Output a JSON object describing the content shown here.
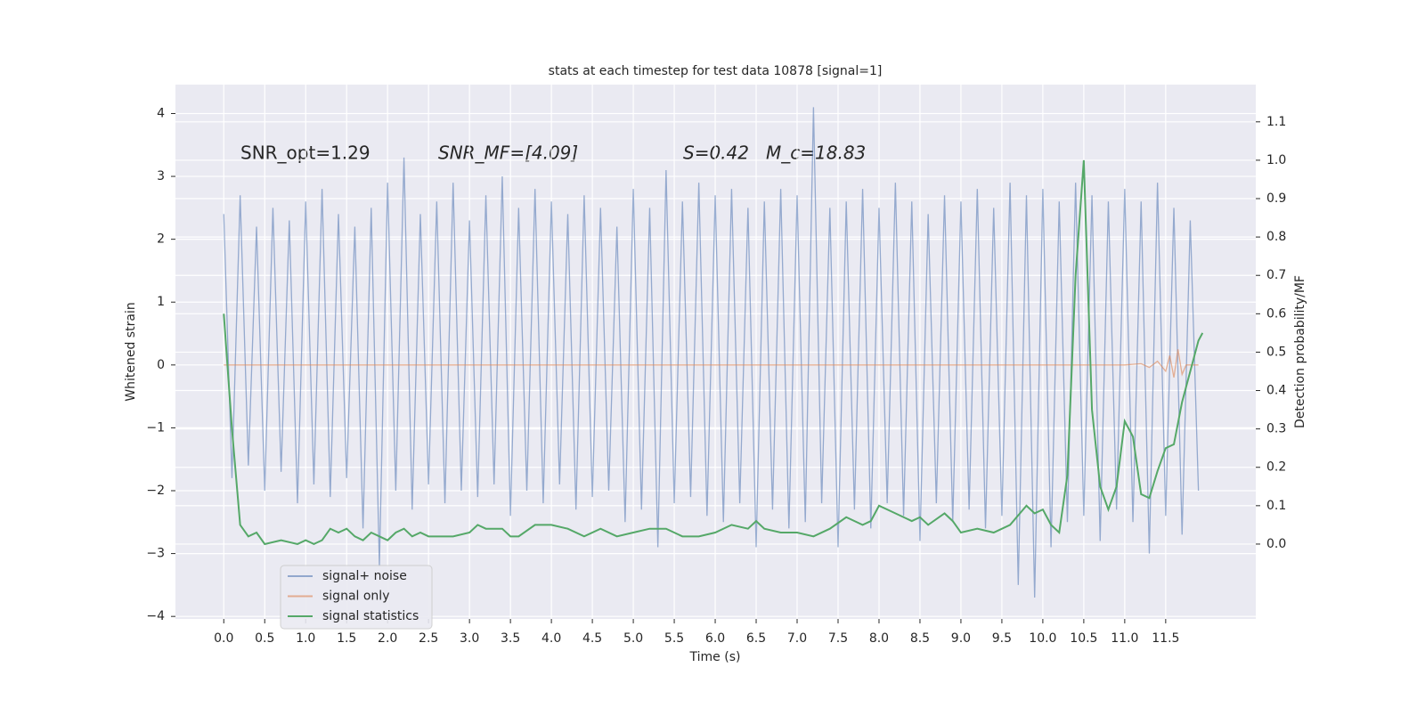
{
  "chart_data": {
    "type": "line",
    "title": "stats at each timestep for test data 10878 [signal=1]",
    "xlabel": "Time (s)",
    "ylabel": "Whitened strain",
    "y2label": "Detection probability/MF",
    "annotations": [
      "SNR_opt=1.29",
      "SNR_MF=[4.09]",
      "S=0.42",
      "M_c=18.83"
    ],
    "xlim": [
      -0.59,
      12.6
    ],
    "ylim": [
      -4.04,
      4.46
    ],
    "y2lim": [
      -0.195,
      1.197
    ],
    "xticks": [
      {
        "value": 0,
        "label": "0.0"
      },
      {
        "value": 0.5,
        "label": "0.5"
      },
      {
        "value": 1,
        "label": "1.0"
      },
      {
        "value": 1.5,
        "label": "1.5"
      },
      {
        "value": 2,
        "label": "2.0"
      },
      {
        "value": 2.5,
        "label": "2.5"
      },
      {
        "value": 3,
        "label": "3.0"
      },
      {
        "value": 3.5,
        "label": "3.5"
      },
      {
        "value": 4,
        "label": "4.0"
      },
      {
        "value": 4.5,
        "label": "4.5"
      },
      {
        "value": 5,
        "label": "5.0"
      },
      {
        "value": 5.5,
        "label": "5.5"
      },
      {
        "value": 6,
        "label": "6.0"
      },
      {
        "value": 6.5,
        "label": "6.5"
      },
      {
        "value": 7,
        "label": "7.0"
      },
      {
        "value": 7.5,
        "label": "7.5"
      },
      {
        "value": 8,
        "label": "8.0"
      },
      {
        "value": 8.5,
        "label": "8.5"
      },
      {
        "value": 9,
        "label": "9.0"
      },
      {
        "value": 9.5,
        "label": "9.5"
      },
      {
        "value": 10,
        "label": "10.0"
      },
      {
        "value": 10.5,
        "label": "10.5"
      },
      {
        "value": 11,
        "label": "11.0"
      },
      {
        "value": 11.5,
        "label": "11.5"
      }
    ],
    "yticks": [
      {
        "value": -4,
        "label": "−4"
      },
      {
        "value": -3,
        "label": "−3"
      },
      {
        "value": -2,
        "label": "−2"
      },
      {
        "value": -1,
        "label": "−1"
      },
      0,
      1,
      2,
      3,
      4
    ],
    "y2ticks": [
      {
        "value": 0,
        "label": "0.0"
      },
      {
        "value": 0.1,
        "label": "0.1"
      },
      {
        "value": 0.2,
        "label": "0.2"
      },
      {
        "value": 0.3,
        "label": "0.3"
      },
      {
        "value": 0.4,
        "label": "0.4"
      },
      {
        "value": 0.5,
        "label": "0.5"
      },
      {
        "value": 0.6,
        "label": "0.6"
      },
      {
        "value": 0.7,
        "label": "0.7"
      },
      {
        "value": 0.8,
        "label": "0.8"
      },
      {
        "value": 0.9,
        "label": "0.9"
      },
      {
        "value": 1.0,
        "label": "1.0"
      },
      {
        "value": 1.1,
        "label": "1.1"
      }
    ],
    "grid": true,
    "legend": "lower left",
    "series": [
      {
        "name": "signal+ noise",
        "color": "#4c72b0",
        "x": [
          0,
          0.1,
          0.2,
          0.3,
          0.4,
          0.5,
          0.6,
          0.7,
          0.8,
          0.9,
          1,
          1.1,
          1.2,
          1.3,
          1.4,
          1.5,
          1.6,
          1.7,
          1.8,
          1.9,
          2,
          2.1,
          2.2,
          2.3,
          2.4,
          2.5,
          2.6,
          2.7,
          2.8,
          2.9,
          3,
          3.1,
          3.2,
          3.3,
          3.4,
          3.5,
          3.6,
          3.7,
          3.8,
          3.9,
          4,
          4.1,
          4.2,
          4.3,
          4.4,
          4.5,
          4.6,
          4.7,
          4.8,
          4.9,
          5,
          5.1,
          5.2,
          5.3,
          5.4,
          5.5,
          5.6,
          5.7,
          5.8,
          5.9,
          6,
          6.1,
          6.2,
          6.3,
          6.4,
          6.5,
          6.6,
          6.7,
          6.8,
          6.9,
          7,
          7.1,
          7.2,
          7.3,
          7.4,
          7.5,
          7.6,
          7.7,
          7.8,
          7.9,
          8,
          8.1,
          8.2,
          8.3,
          8.4,
          8.5,
          8.6,
          8.7,
          8.8,
          8.9,
          9,
          9.1,
          9.2,
          9.3,
          9.4,
          9.5,
          9.6,
          9.7,
          9.8,
          9.9,
          10,
          10.1,
          10.2,
          10.3,
          10.4,
          10.5,
          10.6,
          10.7,
          10.8,
          10.9,
          11,
          11.1,
          11.2,
          11.3,
          11.4,
          11.5,
          11.6,
          11.7,
          11.8,
          11.9
        ],
        "values": [
          2.4,
          -1.8,
          2.7,
          -1.6,
          2.2,
          -2.0,
          2.5,
          -1.7,
          2.3,
          -2.2,
          2.6,
          -1.9,
          2.8,
          -2.1,
          2.4,
          -1.8,
          2.2,
          -2.6,
          2.5,
          -3.2,
          2.9,
          -2.0,
          3.3,
          -2.3,
          2.4,
          -1.9,
          2.6,
          -2.2,
          2.9,
          -2.0,
          2.3,
          -2.1,
          2.7,
          -1.9,
          3.0,
          -2.4,
          2.5,
          -2.0,
          2.8,
          -2.2,
          2.6,
          -1.9,
          2.4,
          -2.3,
          2.7,
          -2.1,
          2.5,
          -2.0,
          2.2,
          -2.5,
          2.8,
          -2.3,
          2.5,
          -2.9,
          3.1,
          -2.2,
          2.6,
          -2.1,
          2.9,
          -2.4,
          2.7,
          -2.5,
          2.8,
          -2.2,
          2.5,
          -2.9,
          2.6,
          -2.3,
          2.8,
          -2.6,
          2.7,
          -2.5,
          4.1,
          -2.2,
          2.5,
          -2.9,
          2.6,
          -2.3,
          2.8,
          -2.6,
          2.5,
          -2.2,
          2.9,
          -2.4,
          2.6,
          -2.8,
          2.4,
          -2.2,
          2.7,
          -2.5,
          2.6,
          -2.3,
          2.8,
          -2.6,
          2.5,
          -2.4,
          2.9,
          -3.5,
          2.7,
          -3.7,
          2.8,
          -2.9,
          2.6,
          -2.5,
          2.9,
          -2.4,
          2.7,
          -2.8,
          2.6,
          -2.3,
          2.8,
          -2.5,
          2.6,
          -3.0,
          2.9,
          -2.4,
          2.5,
          -2.7,
          2.3,
          -2.0
        ]
      },
      {
        "name": "signal only",
        "color": "#dd8452",
        "x": [
          0,
          11.0,
          11.2,
          11.3,
          11.4,
          11.5,
          11.55,
          11.6,
          11.65,
          11.7,
          11.75,
          11.9
        ],
        "values": [
          0,
          0,
          0.02,
          -0.04,
          0.06,
          -0.1,
          0.15,
          -0.2,
          0.25,
          -0.15,
          0,
          0
        ]
      },
      {
        "name": "signal statistics",
        "color": "#55a868",
        "axis": "y2",
        "x": [
          0,
          0.1,
          0.2,
          0.3,
          0.4,
          0.5,
          0.7,
          0.9,
          1.0,
          1.1,
          1.2,
          1.3,
          1.4,
          1.5,
          1.6,
          1.7,
          1.8,
          1.9,
          2.0,
          2.1,
          2.2,
          2.3,
          2.4,
          2.5,
          2.6,
          2.8,
          3.0,
          3.1,
          3.2,
          3.4,
          3.5,
          3.6,
          3.8,
          4.0,
          4.2,
          4.4,
          4.6,
          4.8,
          5.0,
          5.2,
          5.4,
          5.6,
          5.8,
          6.0,
          6.2,
          6.4,
          6.5,
          6.6,
          6.8,
          7.0,
          7.2,
          7.4,
          7.6,
          7.8,
          7.9,
          8.0,
          8.1,
          8.3,
          8.4,
          8.5,
          8.6,
          8.8,
          8.9,
          9.0,
          9.2,
          9.4,
          9.6,
          9.8,
          9.9,
          10.0,
          10.1,
          10.2,
          10.3,
          10.4,
          10.5,
          10.6,
          10.7,
          10.8,
          10.9,
          11.0,
          11.1,
          11.2,
          11.3,
          11.4,
          11.5,
          11.6,
          11.7,
          11.8,
          11.9,
          11.95
        ],
        "values": [
          0.6,
          0.3,
          0.05,
          0.02,
          0.03,
          0.0,
          0.01,
          0.0,
          0.01,
          0.0,
          0.01,
          0.04,
          0.03,
          0.04,
          0.02,
          0.01,
          0.03,
          0.02,
          0.01,
          0.03,
          0.04,
          0.02,
          0.03,
          0.02,
          0.02,
          0.02,
          0.03,
          0.05,
          0.04,
          0.04,
          0.02,
          0.02,
          0.05,
          0.05,
          0.04,
          0.02,
          0.04,
          0.02,
          0.03,
          0.04,
          0.04,
          0.02,
          0.02,
          0.03,
          0.05,
          0.04,
          0.06,
          0.04,
          0.03,
          0.03,
          0.02,
          0.04,
          0.07,
          0.05,
          0.06,
          0.1,
          0.09,
          0.07,
          0.06,
          0.07,
          0.05,
          0.08,
          0.06,
          0.03,
          0.04,
          0.03,
          0.05,
          0.1,
          0.08,
          0.09,
          0.05,
          0.03,
          0.18,
          0.7,
          1.0,
          0.35,
          0.15,
          0.09,
          0.15,
          0.32,
          0.28,
          0.13,
          0.12,
          0.19,
          0.25,
          0.26,
          0.37,
          0.45,
          0.53,
          0.55
        ]
      }
    ]
  }
}
